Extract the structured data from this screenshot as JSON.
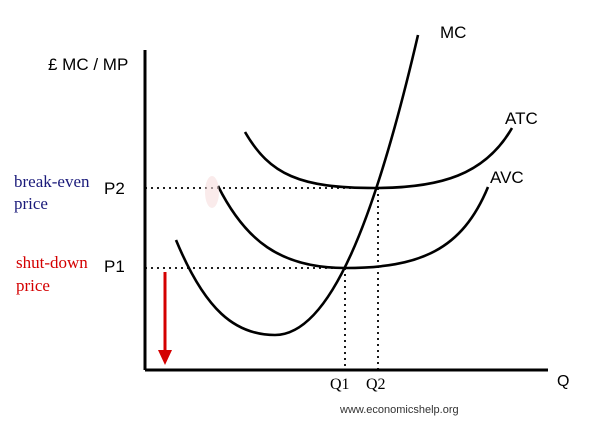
{
  "diagram": {
    "y_axis_label": "£ MC / MP",
    "x_axis_label": "Q",
    "curve_labels": {
      "mc": "MC",
      "atc": "ATC",
      "avc": "AVC"
    },
    "price_labels": {
      "p2": "P2",
      "p1": "P1"
    },
    "quantity_labels": {
      "q1": "Q1",
      "q2": "Q2"
    },
    "annotations": {
      "break_even_line1": "break-even",
      "break_even_line2": "price",
      "shut_down_line1": "shut-down",
      "shut_down_line2": "price"
    },
    "watermark": "www.economicshelp.org",
    "colors": {
      "axes": "#000000",
      "curves": "#000000",
      "break_even_text": "#1a1a7a",
      "shut_down_text": "#d40000",
      "arrow": "#d40000"
    }
  }
}
